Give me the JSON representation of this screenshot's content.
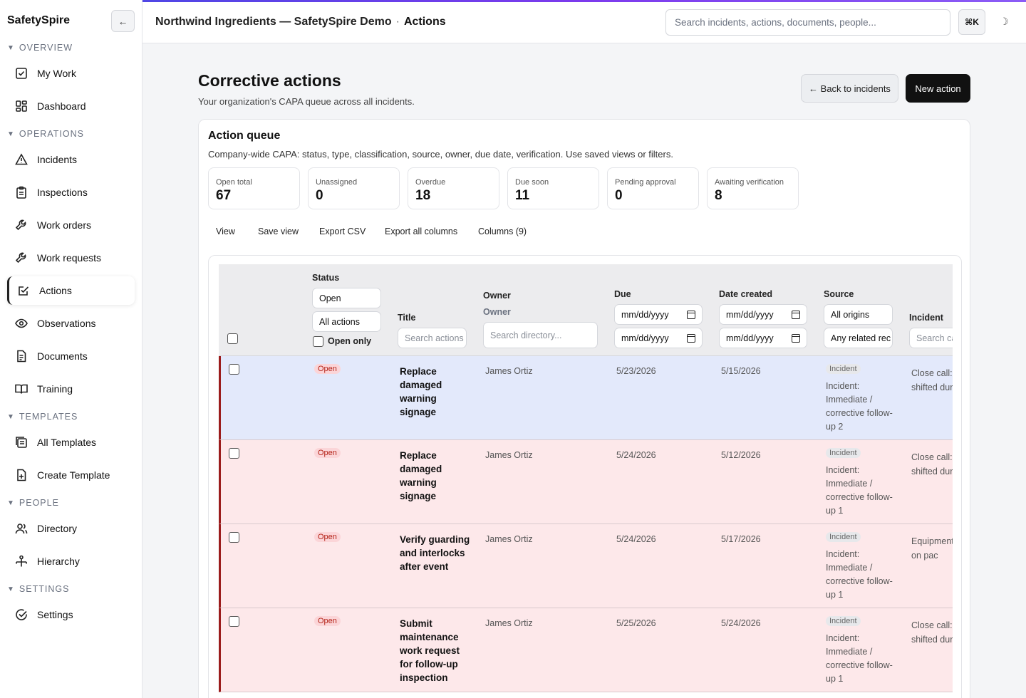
{
  "app": {
    "brand": "SafetySpire",
    "collapse_label": "←"
  },
  "sidebar": {
    "sections": [
      {
        "label": "OVERVIEW",
        "items": [
          {
            "label": "My Work",
            "icon": "checkbox-icon"
          },
          {
            "label": "Dashboard",
            "icon": "grid-icon"
          }
        ]
      },
      {
        "label": "OPERATIONS",
        "items": [
          {
            "label": "Incidents",
            "icon": "warning-icon"
          },
          {
            "label": "Inspections",
            "icon": "clipboard-icon"
          },
          {
            "label": "Work orders",
            "icon": "wrench-icon"
          },
          {
            "label": "Work requests",
            "icon": "wrench-icon"
          },
          {
            "label": "Actions",
            "icon": "edit-check-icon",
            "active": true
          },
          {
            "label": "Observations",
            "icon": "eye-icon"
          },
          {
            "label": "Documents",
            "icon": "document-icon"
          },
          {
            "label": "Training",
            "icon": "book-icon"
          }
        ]
      },
      {
        "label": "TEMPLATES",
        "items": [
          {
            "label": "All Templates",
            "icon": "layers-icon"
          },
          {
            "label": "Create Template",
            "icon": "file-plus-icon"
          }
        ]
      },
      {
        "label": "PEOPLE",
        "items": [
          {
            "label": "Directory",
            "icon": "users-icon"
          },
          {
            "label": "Hierarchy",
            "icon": "hierarchy-icon"
          }
        ]
      },
      {
        "label": "SETTINGS",
        "items": [
          {
            "label": "Settings",
            "icon": "check-circle-icon"
          }
        ]
      }
    ]
  },
  "topbar": {
    "org": "Northwind Ingredients — SafetySpire Demo",
    "separator": "·",
    "current": "Actions",
    "search_placeholder": "Search incidents, actions, documents, people...",
    "shortcut": "⌘K",
    "theme_icon": "☽"
  },
  "page": {
    "title": "Corrective actions",
    "subtitle": "Your organization's CAPA queue across all incidents.",
    "back_button": "← Back to incidents",
    "new_button": "New action"
  },
  "queue": {
    "title": "Action queue",
    "subtitle": "Company-wide CAPA: status, type, classification, source, owner, due date, verification. Use saved views or filters.",
    "stats": [
      {
        "label": "Open total",
        "value": "67"
      },
      {
        "label": "Unassigned",
        "value": "0"
      },
      {
        "label": "Overdue",
        "value": "18"
      },
      {
        "label": "Due soon",
        "value": "11"
      },
      {
        "label": "Pending approval",
        "value": "0"
      },
      {
        "label": "Awaiting verification",
        "value": "8"
      }
    ],
    "toolbar": {
      "view": "View",
      "save_view": "Save view",
      "export_csv": "Export CSV",
      "export_all": "Export all columns",
      "columns": "Columns (9)"
    }
  },
  "table": {
    "headers": {
      "status": "Status",
      "title": "Title",
      "owner": "Owner",
      "owner_sub": "Owner",
      "due": "Due",
      "created": "Date created",
      "source": "Source",
      "incident": "Incident"
    },
    "filters": {
      "status_value": "Open",
      "type_value": "All actions",
      "open_only": "Open only",
      "title_placeholder": "Search actions",
      "owner_placeholder": "Search directory...",
      "date_placeholder": "mm/dd/yyyy",
      "source_value": "All origins",
      "related_value": "Any related rec",
      "incident_placeholder": "Search cases"
    },
    "rows": [
      {
        "status": "Open",
        "title": "Replace damaged warning signage",
        "owner": "James Ortiz",
        "due": "5/23/2026",
        "created": "5/15/2026",
        "source_badge": "Incident",
        "source": "Incident: Immediate / corrective follow-up 2",
        "incident": "Close call: p shifted duri",
        "selected": true
      },
      {
        "status": "Open",
        "title": "Replace damaged warning signage",
        "owner": "James Ortiz",
        "due": "5/24/2026",
        "created": "5/12/2026",
        "source_badge": "Incident",
        "source": "Incident: Immediate / corrective follow-up 1",
        "incident": "Close call: p shifted duri",
        "selected": false
      },
      {
        "status": "Open",
        "title": "Verify guarding and interlocks after event",
        "owner": "James Ortiz",
        "due": "5/24/2026",
        "created": "5/17/2026",
        "source_badge": "Incident",
        "source": "Incident: Immediate / corrective follow-up 1",
        "incident": "Equipment bent on pac",
        "selected": false
      },
      {
        "status": "Open",
        "title": "Submit maintenance work request for follow-up inspection",
        "owner": "James Ortiz",
        "due": "5/25/2026",
        "created": "5/24/2026",
        "source_badge": "Incident",
        "source": "Incident: Immediate / corrective follow-up 1",
        "incident": "Close call: p shifted duri",
        "selected": false
      }
    ]
  }
}
